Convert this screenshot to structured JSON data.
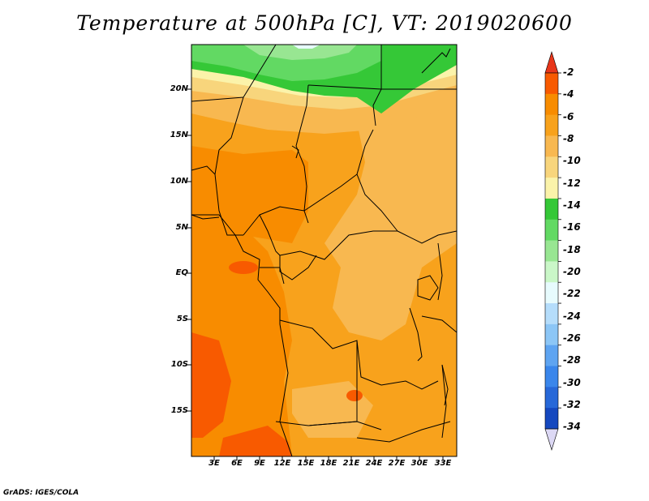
{
  "title": "Temperature at 500hPa [C], VT: 2019020600",
  "credit": "GrADS: IGES/COLA",
  "lat_ticks": [
    "20N",
    "15N",
    "10N",
    "5N",
    "EQ",
    "5S",
    "10S",
    "15S"
  ],
  "lon_ticks": [
    "3E",
    "6E",
    "9E",
    "12E",
    "15E",
    "18E",
    "21E",
    "24E",
    "27E",
    "30E",
    "33E"
  ],
  "colorbar": {
    "labels": [
      "-2",
      "-4",
      "-6",
      "-8",
      "-10",
      "-12",
      "-14",
      "-16",
      "-18",
      "-20",
      "-22",
      "-24",
      "-26",
      "-28",
      "-30",
      "-32",
      "-34"
    ],
    "colors": [
      "#f85a00",
      "#f88c00",
      "#f8a21c",
      "#f8b850",
      "#f8d57c",
      "#fbf3aa",
      "#35c837",
      "#62d963",
      "#98e692",
      "#caf7c8",
      "#e7fbfd",
      "#b5ddfb",
      "#8cc6f6",
      "#5ea4f1",
      "#3a86eb",
      "#2768d8",
      "#1548bf",
      "#0b2a97",
      "#000858"
    ],
    "over_color": "#e8361a",
    "under_color": "#dcd8f4"
  },
  "map": {
    "field": "Temperature at 500hPa",
    "units": "C"
  }
}
